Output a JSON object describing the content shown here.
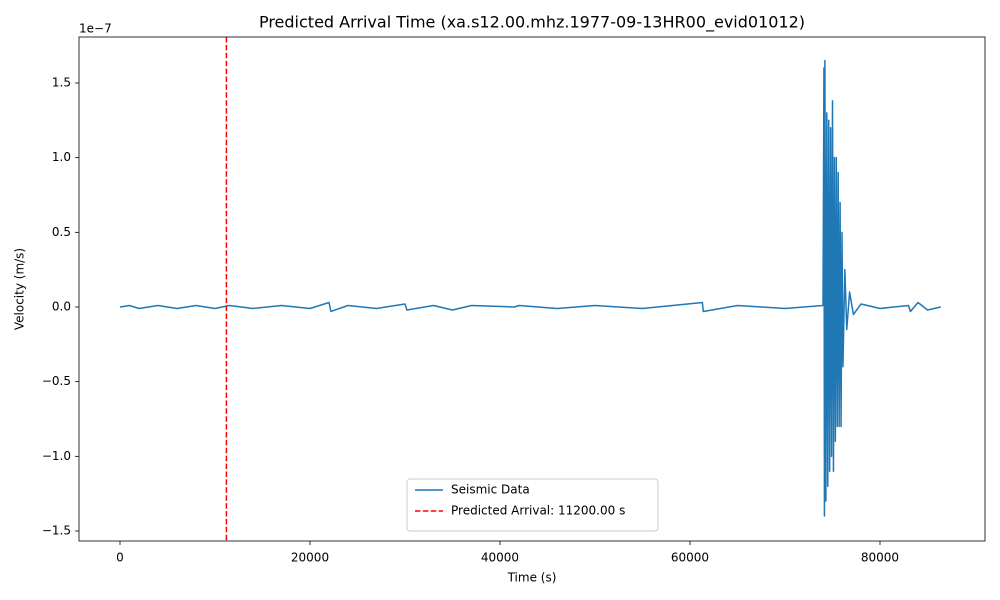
{
  "chart_data": {
    "type": "line",
    "title": "Predicted Arrival Time (xa.s12.00.mhz.1977-09-13HR00_evid01012)",
    "x_label": "Time (s)",
    "y_label": "Velocity (m/s)",
    "y_offset_label": "1e−7",
    "xlim": [
      -4316,
      91053
    ],
    "ylim": [
      -1.567,
      1.808
    ],
    "xticks": [
      0,
      20000,
      40000,
      60000,
      80000
    ],
    "yticks": [
      {
        "value": -1.5,
        "label": "−1.5"
      },
      {
        "value": -1.0,
        "label": "−1.0"
      },
      {
        "value": -0.5,
        "label": "−0.5"
      },
      {
        "value": 0.0,
        "label": "0.0"
      },
      {
        "value": 0.5,
        "label": "0.5"
      },
      {
        "value": 1.0,
        "label": "1.0"
      },
      {
        "value": 1.5,
        "label": "1.5"
      }
    ],
    "grid": false,
    "legend": "lower center",
    "series": [
      {
        "name": "Seismic Data",
        "color": "#1f77b4",
        "x": [
          0,
          1000,
          2000,
          4000,
          6000,
          8000,
          10000,
          11500,
          14000,
          17000,
          20000,
          22000,
          22200,
          24000,
          27000,
          30000,
          30200,
          33000,
          35000,
          37000,
          41500,
          42000,
          46000,
          50000,
          55000,
          61300,
          61400,
          65000,
          70000,
          74000,
          74100,
          74150,
          74200,
          74300,
          74400,
          74500,
          74600,
          74700,
          74800,
          74900,
          75000,
          75100,
          75200,
          75300,
          75400,
          75500,
          75600,
          75700,
          75800,
          75900,
          76000,
          76100,
          76300,
          76500,
          76800,
          77200,
          78000,
          80000,
          83000,
          83200,
          84000,
          85000,
          86400
        ],
        "values": [
          0,
          0.01,
          -0.01,
          0.01,
          -0.01,
          0.01,
          -0.01,
          0.01,
          -0.01,
          0.01,
          -0.01,
          0.03,
          -0.03,
          0.01,
          -0.01,
          0.02,
          -0.02,
          0.01,
          -0.02,
          0.01,
          0,
          0.01,
          -0.01,
          0.01,
          -0.01,
          0.03,
          -0.03,
          0.01,
          -0.01,
          0.01,
          1.6,
          -1.4,
          1.65,
          -1.3,
          1.3,
          -1.2,
          1.25,
          -1.1,
          1.2,
          -1.0,
          1.38,
          -1.1,
          1.0,
          -0.9,
          1.0,
          -0.8,
          0.9,
          -0.8,
          0.7,
          -0.8,
          0.5,
          -0.4,
          0.25,
          -0.15,
          0.1,
          -0.05,
          0.02,
          -0.01,
          0.01,
          -0.03,
          0.03,
          -0.02,
          0
        ]
      },
      {
        "name": "Predicted Arrival: 11200.00 s",
        "color": "#ff0000",
        "dashed": true,
        "x": 11200
      }
    ]
  }
}
